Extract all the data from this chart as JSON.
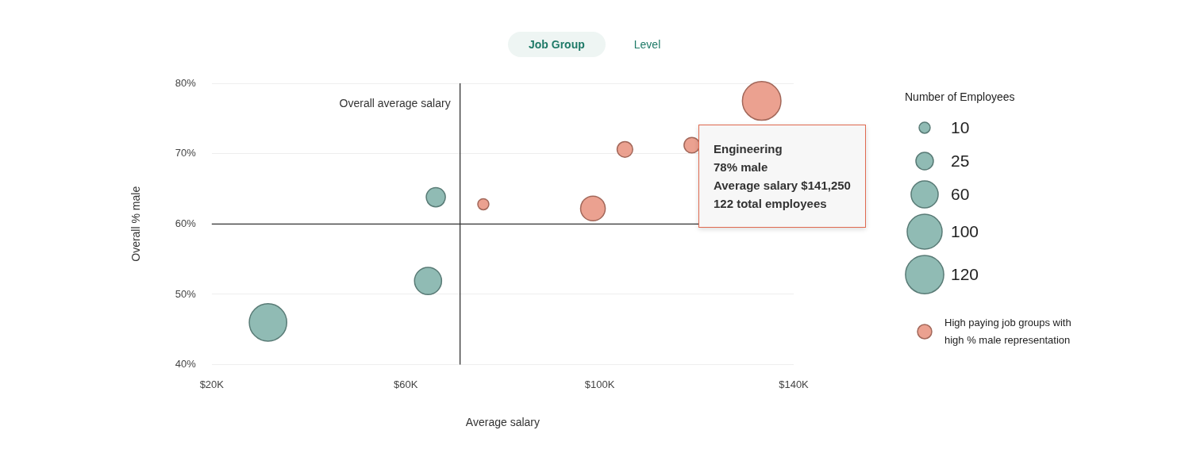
{
  "chart_data": {
    "type": "bubble",
    "xlabel": "Average salary",
    "ylabel": "Overall % male",
    "legend_title": "Number of Employees",
    "xlim": [
      20,
      140
    ],
    "xticks": [
      {
        "value": 20,
        "label": "$20K"
      },
      {
        "value": 60,
        "label": "$60K"
      },
      {
        "value": 100,
        "label": "$100K"
      },
      {
        "value": 140,
        "label": "$140K"
      }
    ],
    "ylim": [
      40,
      80
    ],
    "yticks": [
      {
        "value": 40,
        "label": "40%"
      },
      {
        "value": 50,
        "label": "50%"
      },
      {
        "value": 60,
        "label": "60%"
      },
      {
        "value": 70,
        "label": "70%"
      },
      {
        "value": 80,
        "label": "80%"
      }
    ],
    "grid": "y",
    "legend": "right",
    "size_legend": [
      10,
      25,
      60,
      100,
      120
    ],
    "series": [
      {
        "color": "#7fb0a8",
        "x": [
          31.6,
          64.6,
          66.2
        ],
        "values": [
          46,
          51.9,
          63.8
        ],
        "sizes": [
          115,
          60,
          30
        ]
      },
      {
        "name": "High paying job groups with high % male representation",
        "color": "#e8937f",
        "x": [
          76,
          98.6,
          105.2,
          119,
          133.4
        ],
        "values": [
          62.8,
          62.2,
          70.6,
          71.2,
          77.5
        ],
        "sizes": [
          10,
          50,
          20,
          20,
          122
        ]
      }
    ],
    "ref_lines": [
      {
        "axis": "x",
        "value": 71.2,
        "label": "Overall average salary",
        "color": "#333333"
      },
      {
        "axis": "y",
        "value": 60,
        "color": "#333333"
      }
    ],
    "annotations": [
      "Job Group",
      "Level",
      "Engineering\n78% male\nAverage salary $141,250\n122 total employees"
    ]
  }
}
